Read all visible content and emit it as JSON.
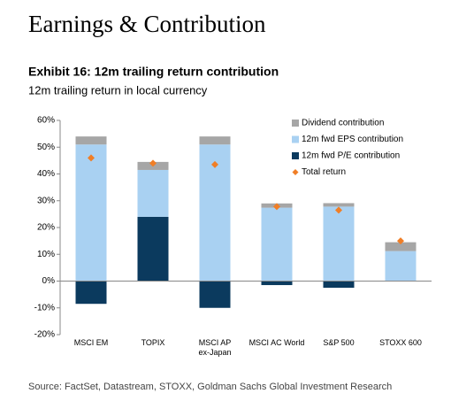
{
  "header": {
    "title": "Earnings & Contribution"
  },
  "chart_data": {
    "type": "bar",
    "stacked": true,
    "title": "Exhibit 16: 12m trailing return contribution",
    "subtitle": "12m trailing return in local currency",
    "source": "Source: FactSet, Datastream, STOXX, Goldman Sachs Global Investment Research",
    "categories": [
      "MSCI EM",
      "TOPIX",
      "MSCI AP\nex-Japan",
      "MSCI AC World",
      "S&P 500",
      "STOXX 600"
    ],
    "series": [
      {
        "name": "Dividend contribution",
        "color": "#a6a6a6",
        "values": [
          3,
          3,
          3,
          1.6,
          1.3,
          3.3
        ]
      },
      {
        "name": "12m fwd EPS contribution",
        "color": "#a9d1f2",
        "values": [
          51,
          17.5,
          51,
          27.4,
          27.8,
          11.2
        ]
      },
      {
        "name": "12m fwd P/E contribution",
        "color": "#0b3a5e",
        "values": [
          -8.5,
          24,
          -10,
          -1.5,
          -2.5,
          0
        ]
      },
      {
        "name": "Total return",
        "type": "scatter",
        "color": "#f07e26",
        "values": [
          46,
          44,
          43.5,
          27.8,
          26.5,
          15
        ]
      }
    ],
    "ylim": [
      -20,
      60
    ],
    "yticks": [
      {
        "value": -20,
        "label": "-20%"
      },
      {
        "value": -10,
        "label": "-10%"
      },
      {
        "value": 0,
        "label": "0%"
      },
      {
        "value": 10,
        "label": "10%"
      },
      {
        "value": 20,
        "label": "20%"
      },
      {
        "value": 30,
        "label": "30%"
      },
      {
        "value": 40,
        "label": "40%"
      },
      {
        "value": 50,
        "label": "50%"
      },
      {
        "value": 60,
        "label": "60%"
      }
    ],
    "grid": false,
    "legend": "top-right"
  }
}
